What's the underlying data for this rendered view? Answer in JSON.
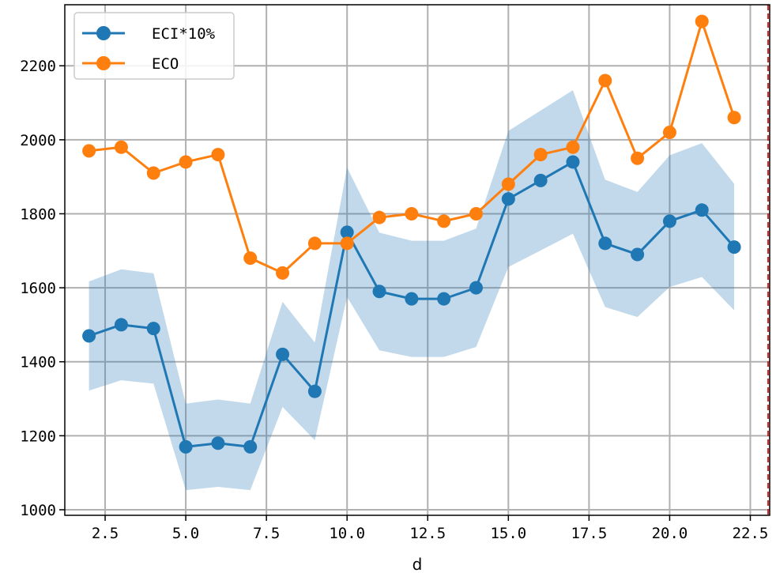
{
  "chart_data": {
    "type": "line",
    "title": "",
    "xlabel": "d",
    "ylabel": "",
    "xlim": [
      1.25,
      23.1
    ],
    "ylim": [
      985,
      2365
    ],
    "x_ticks": [
      2.5,
      5.0,
      7.5,
      10.0,
      12.5,
      15.0,
      17.5,
      20.0,
      22.5
    ],
    "x_tick_labels": [
      "2.5",
      "5.0",
      "7.5",
      "10.0",
      "12.5",
      "15.0",
      "17.5",
      "20.0",
      "22.5"
    ],
    "y_ticks": [
      1000,
      1200,
      1400,
      1600,
      1800,
      2000,
      2200
    ],
    "y_tick_labels": [
      "1000",
      "1200",
      "1400",
      "1600",
      "1800",
      "2000",
      "2200"
    ],
    "grid": true,
    "legend_position": "top-left",
    "vline_x": 23.05,
    "x": [
      2,
      3,
      4,
      5,
      6,
      7,
      8,
      9,
      10,
      11,
      12,
      13,
      14,
      15,
      16,
      17,
      18,
      19,
      20,
      21,
      22
    ],
    "series": [
      {
        "name": "ECI*10%",
        "color": "#1f77b4",
        "marker": "circle",
        "values": [
          1470,
          1500,
          1490,
          1170,
          1180,
          1170,
          1420,
          1320,
          1750,
          1590,
          1570,
          1570,
          1600,
          1840,
          1890,
          1940,
          1720,
          1690,
          1780,
          1810,
          1710
        ],
        "band_lower": [
          1322,
          1350,
          1341,
          1053,
          1062,
          1053,
          1278,
          1188,
          1575,
          1431,
          1413,
          1413,
          1440,
          1656,
          1701,
          1746,
          1548,
          1521,
          1602,
          1629,
          1539
        ],
        "band_upper": [
          1617,
          1650,
          1639,
          1287,
          1298,
          1287,
          1562,
          1452,
          1925,
          1749,
          1727,
          1727,
          1760,
          2024,
          2079,
          2134,
          1892,
          1859,
          1958,
          1991,
          1881
        ],
        "band_color": "#1f77b4"
      },
      {
        "name": "ECO",
        "color": "#ff7f0e",
        "marker": "circle",
        "values": [
          1970,
          1980,
          1910,
          1940,
          1960,
          1680,
          1640,
          1720,
          1720,
          1790,
          1800,
          1780,
          1800,
          1880,
          1960,
          1980,
          2160,
          1950,
          2020,
          2320,
          2060
        ]
      }
    ]
  }
}
